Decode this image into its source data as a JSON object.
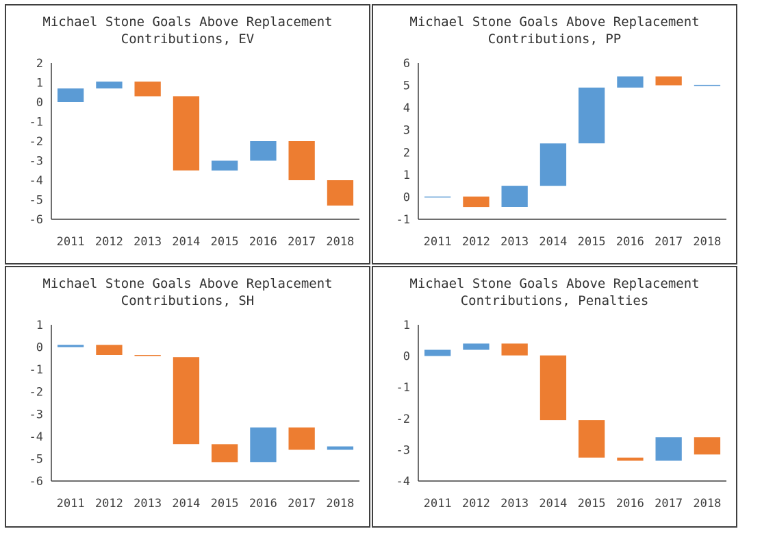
{
  "colors": {
    "up": "#5b9bd5",
    "down": "#ed7d31",
    "axis": "#3f3f3f",
    "text": "#404040"
  },
  "chart_data": [
    {
      "type": "waterfall",
      "title_line1": "Michael Stone Goals Above Replacement",
      "title_line2": "Contributions, EV",
      "categories": [
        "2011",
        "2012",
        "2013",
        "2014",
        "2015",
        "2016",
        "2017",
        "2018"
      ],
      "yticks": [
        "2",
        "1",
        "0",
        "-1",
        "-2",
        "-3",
        "-4",
        "-5",
        "-6"
      ],
      "ylim": [
        -6,
        2
      ],
      "bars": [
        {
          "from": 0,
          "to": 0.7,
          "color": "up"
        },
        {
          "from": 0.7,
          "to": 1.05,
          "color": "up"
        },
        {
          "from": 1.05,
          "to": 0.3,
          "color": "down"
        },
        {
          "from": 0.3,
          "to": -3.5,
          "color": "down"
        },
        {
          "from": -3.5,
          "to": -3.0,
          "color": "up"
        },
        {
          "from": -3.0,
          "to": -2.0,
          "color": "up"
        },
        {
          "from": -2.0,
          "to": -4.0,
          "color": "down"
        },
        {
          "from": -4.0,
          "to": -5.3,
          "color": "down"
        }
      ]
    },
    {
      "type": "waterfall",
      "title_line1": "Michael Stone Goals Above Replacement",
      "title_line2": "Contributions, PP",
      "categories": [
        "2011",
        "2012",
        "2013",
        "2014",
        "2015",
        "2016",
        "2017",
        "2018"
      ],
      "yticks": [
        "6",
        "5",
        "4",
        "3",
        "2",
        "1",
        "0",
        "-1"
      ],
      "ylim": [
        -1,
        6
      ],
      "bars": [
        {
          "from": 0,
          "to": 0.02,
          "color": "up"
        },
        {
          "from": 0.02,
          "to": -0.45,
          "color": "down"
        },
        {
          "from": -0.45,
          "to": 0.5,
          "color": "up"
        },
        {
          "from": 0.5,
          "to": 2.4,
          "color": "up"
        },
        {
          "from": 2.4,
          "to": 4.9,
          "color": "up"
        },
        {
          "from": 4.9,
          "to": 5.4,
          "color": "up"
        },
        {
          "from": 5.4,
          "to": 5.0,
          "color": "down"
        },
        {
          "from": 5.0,
          "to": 5.02,
          "color": "up"
        }
      ]
    },
    {
      "type": "waterfall",
      "title_line1": "Michael Stone Goals Above Replacement",
      "title_line2": "Contributions, SH",
      "categories": [
        "2011",
        "2012",
        "2013",
        "2014",
        "2015",
        "2016",
        "2017",
        "2018"
      ],
      "yticks": [
        "1",
        "0",
        "-1",
        "-2",
        "-3",
        "-4",
        "-5",
        "-6"
      ],
      "ylim": [
        -6,
        1
      ],
      "bars": [
        {
          "from": 0,
          "to": 0.1,
          "color": "up"
        },
        {
          "from": 0.1,
          "to": -0.35,
          "color": "down"
        },
        {
          "from": -0.35,
          "to": -0.4,
          "color": "down"
        },
        {
          "from": -0.45,
          "to": -4.35,
          "color": "down"
        },
        {
          "from": -4.35,
          "to": -5.15,
          "color": "down"
        },
        {
          "from": -5.15,
          "to": -3.6,
          "color": "up"
        },
        {
          "from": -3.6,
          "to": -4.6,
          "color": "down"
        },
        {
          "from": -4.6,
          "to": -4.45,
          "color": "up"
        }
      ]
    },
    {
      "type": "waterfall",
      "title_line1": "Michael Stone Goals Above Replacement",
      "title_line2": "Contributions, Penalties",
      "categories": [
        "2011",
        "2012",
        "2013",
        "2014",
        "2015",
        "2016",
        "2017",
        "2018"
      ],
      "yticks": [
        "1",
        "0",
        "-1",
        "-2",
        "-3",
        "-4"
      ],
      "ylim": [
        -4,
        1
      ],
      "bars": [
        {
          "from": 0,
          "to": 0.2,
          "color": "up"
        },
        {
          "from": 0.2,
          "to": 0.4,
          "color": "up"
        },
        {
          "from": 0.4,
          "to": 0.02,
          "color": "down"
        },
        {
          "from": 0.02,
          "to": -2.05,
          "color": "down"
        },
        {
          "from": -2.05,
          "to": -3.25,
          "color": "down"
        },
        {
          "from": -3.25,
          "to": -3.35,
          "color": "down"
        },
        {
          "from": -3.35,
          "to": -2.6,
          "color": "up"
        },
        {
          "from": -2.6,
          "to": -3.15,
          "color": "down"
        }
      ]
    }
  ]
}
